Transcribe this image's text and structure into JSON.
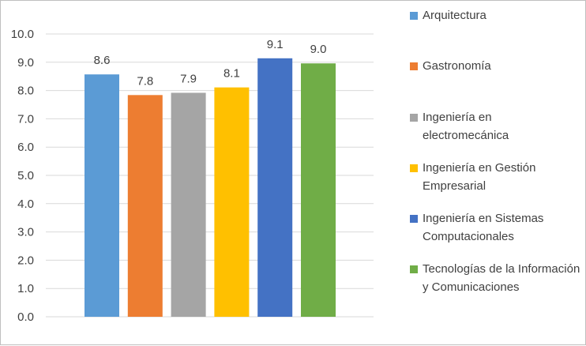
{
  "chart_data": {
    "type": "bar",
    "title": "",
    "xlabel": "",
    "ylabel": "",
    "ylim": [
      0,
      10
    ],
    "yticks": [
      "0.0",
      "1.0",
      "2.0",
      "3.0",
      "4.0",
      "5.0",
      "6.0",
      "7.0",
      "8.0",
      "9.0",
      "10.0"
    ],
    "grid": true,
    "legend_position": "right",
    "series": [
      {
        "name": "Arquitectura",
        "value": 8.57,
        "label": "8.6",
        "color": "#5b9bd5"
      },
      {
        "name": "Gastronomía",
        "value": 7.84,
        "label": "7.8",
        "color": "#ed7d31"
      },
      {
        "name": "Ingeniería en electromecánica",
        "value": 7.92,
        "label": "7.9",
        "color": "#a5a5a5"
      },
      {
        "name": "Ingeniería en Gestión Empresarial",
        "value": 8.11,
        "label": "8.1",
        "color": "#ffc000"
      },
      {
        "name": "Ingeniería en Sistemas Computacionales",
        "value": 9.14,
        "label": "9.1",
        "color": "#4472c4"
      },
      {
        "name": "Tecnologías de la Información y Comunicaciones",
        "value": 8.96,
        "label": "9.0",
        "color": "#70ad47"
      }
    ]
  }
}
